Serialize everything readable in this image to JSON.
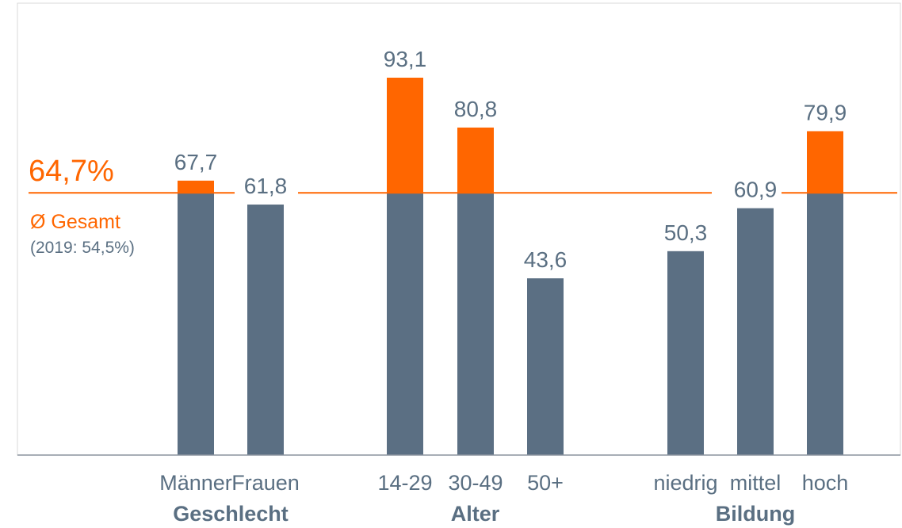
{
  "colors": {
    "base": "#5b6f83",
    "accent": "#ff6600",
    "axis": "#8a949e",
    "frame": "#d9d9d9",
    "text": "#5a6f82"
  },
  "chart_data": {
    "type": "bar",
    "categories": [
      "Männer",
      "Frauen",
      "14-29",
      "30-49",
      "50+",
      "niedrig",
      "mittel",
      "hoch"
    ],
    "values": [
      67.7,
      61.8,
      93.1,
      80.8,
      43.6,
      50.3,
      60.9,
      79.9
    ],
    "value_labels": [
      "67,7",
      "61,8",
      "93,1",
      "80,8",
      "43,6",
      "50,3",
      "60,9",
      "79,9"
    ],
    "groups": [
      {
        "label": "Geschlecht",
        "indices": [
          0,
          1
        ]
      },
      {
        "label": "Alter",
        "indices": [
          2,
          3,
          4
        ]
      },
      {
        "label": "Bildung",
        "indices": [
          5,
          6,
          7
        ]
      }
    ],
    "reference": {
      "value": 64.7,
      "label": "64,7%",
      "caption": "Ø Gesamt",
      "previous": "(2019: 54,5%)"
    },
    "ylim": [
      0,
      100
    ],
    "grid": false,
    "legend": "none"
  }
}
